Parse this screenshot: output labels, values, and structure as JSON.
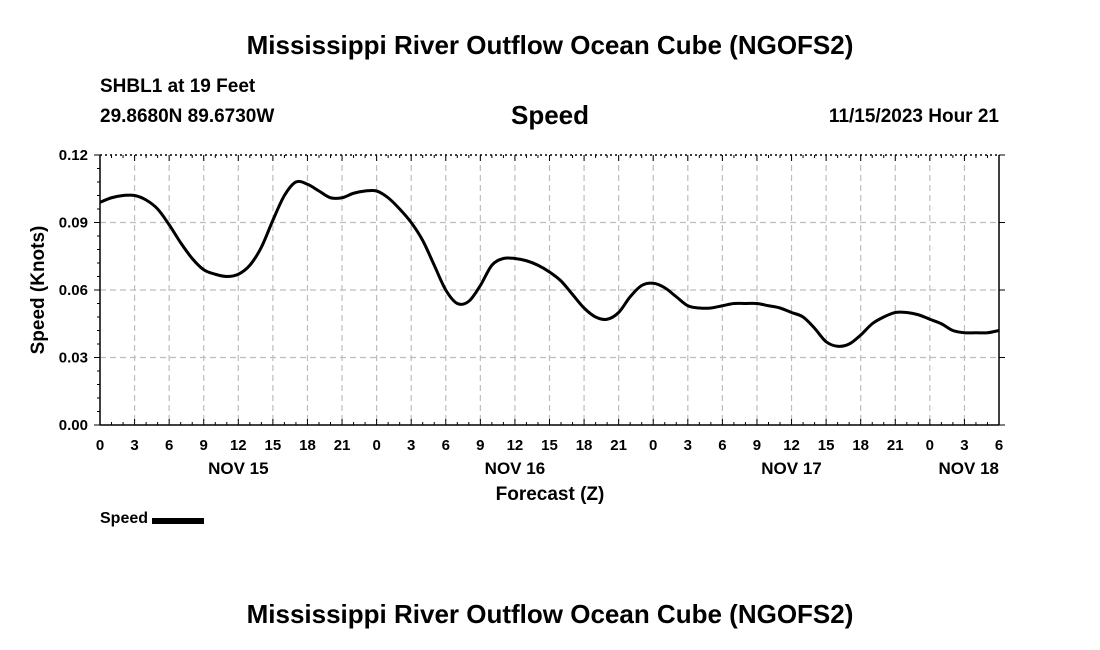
{
  "header": {
    "title": "Mississippi River Outflow Ocean Cube (NGOFS2)",
    "station": "SHBL1 at 19 Feet",
    "coordinates": "29.8680N  89.6730W",
    "variable": "Speed",
    "datetime": "11/15/2023 Hour 21"
  },
  "footer": {
    "title": "Mississippi River Outflow Ocean Cube (NGOFS2)"
  },
  "legend": {
    "label": "Speed"
  },
  "chart_data": {
    "type": "line",
    "title": "Speed",
    "xlabel": "Forecast (Z)",
    "ylabel": "Speed (Knots)",
    "xlim": [
      0,
      78
    ],
    "ylim": [
      0,
      0.12
    ],
    "yticks": [
      0.0,
      0.03,
      0.06,
      0.09,
      0.12
    ],
    "ytick_labels": [
      "0.00",
      "0.03",
      "0.06",
      "0.09",
      "0.12"
    ],
    "xtick_labels": [
      "0",
      "3",
      "6",
      "9",
      "12",
      "15",
      "18",
      "21",
      "0",
      "3",
      "6",
      "9",
      "12",
      "15",
      "18",
      "21",
      "0",
      "3",
      "6",
      "9",
      "12",
      "15",
      "18",
      "21",
      "0",
      "3",
      "6"
    ],
    "date_labels": [
      {
        "label": "NOV 15",
        "hour": 12
      },
      {
        "label": "NOV 16",
        "hour": 36
      },
      {
        "label": "NOV 17",
        "hour": 60
      },
      {
        "label": "NOV 18",
        "hour": 78
      }
    ],
    "grid": true,
    "series": [
      {
        "name": "Speed",
        "color": "#000000",
        "x": [
          0,
          1,
          2,
          3,
          4,
          5,
          6,
          7,
          8,
          9,
          10,
          11,
          12,
          13,
          14,
          15,
          16,
          17,
          18,
          19,
          20,
          21,
          22,
          23,
          24,
          25,
          26,
          27,
          28,
          29,
          30,
          31,
          32,
          33,
          34,
          35,
          36,
          37,
          38,
          39,
          40,
          41,
          42,
          43,
          44,
          45,
          46,
          47,
          48,
          49,
          50,
          51,
          52,
          53,
          54,
          55,
          56,
          57,
          58,
          59,
          60,
          61,
          62,
          63,
          64,
          65,
          66,
          67,
          68,
          69,
          70,
          71,
          72,
          73,
          74,
          75,
          76,
          77,
          78
        ],
        "values": [
          0.099,
          0.101,
          0.102,
          0.102,
          0.1,
          0.096,
          0.089,
          0.081,
          0.074,
          0.069,
          0.067,
          0.066,
          0.067,
          0.071,
          0.079,
          0.091,
          0.102,
          0.108,
          0.107,
          0.104,
          0.101,
          0.101,
          0.103,
          0.104,
          0.104,
          0.101,
          0.096,
          0.09,
          0.082,
          0.071,
          0.06,
          0.054,
          0.055,
          0.062,
          0.071,
          0.074,
          0.074,
          0.073,
          0.071,
          0.068,
          0.064,
          0.058,
          0.052,
          0.048,
          0.047,
          0.05,
          0.057,
          0.062,
          0.063,
          0.061,
          0.057,
          0.053,
          0.052,
          0.052,
          0.053,
          0.054,
          0.054,
          0.054,
          0.053,
          0.052,
          0.05,
          0.048,
          0.043,
          0.037,
          0.035,
          0.036,
          0.04,
          0.045,
          0.048,
          0.05,
          0.05,
          0.049,
          0.047,
          0.045,
          0.042,
          0.041,
          0.041,
          0.041,
          0.042
        ]
      }
    ]
  }
}
